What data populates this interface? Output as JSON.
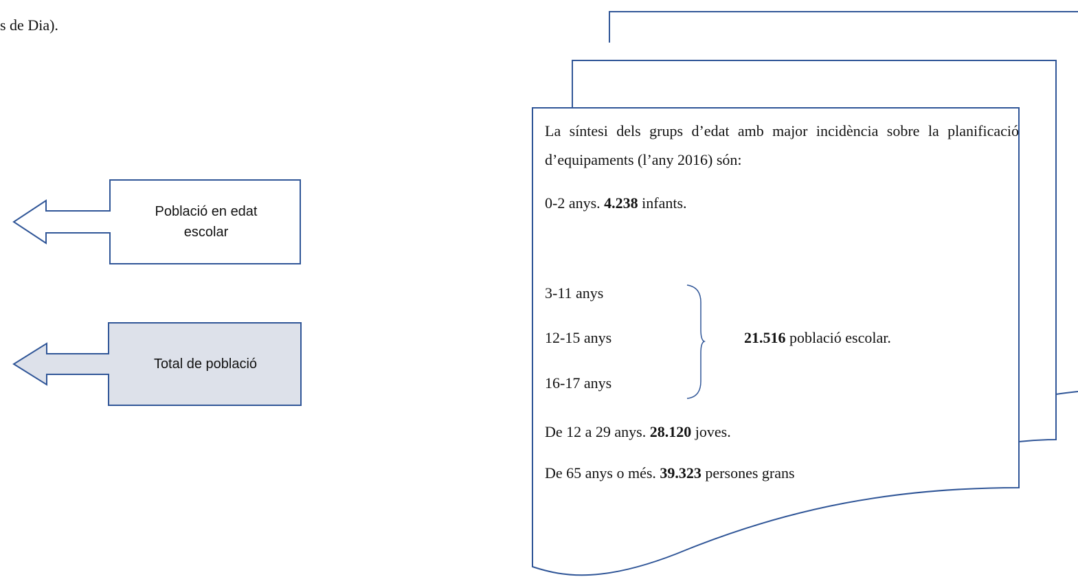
{
  "fragment": "s de Dia).",
  "callouts": [
    {
      "label": "Població en edat escolar"
    },
    {
      "label": "Total de població"
    }
  ],
  "document": {
    "intro": "La síntesi dels grups d’edat amb major incidència sobre la planificació d’equipaments (l’any 2016) són:",
    "first": {
      "before": "0-2 anys.",
      "figure": "4.238",
      "after": "infants."
    },
    "group": {
      "ages": [
        "3-11 anys",
        "12-15 anys",
        "16-17 anys"
      ],
      "figure": "21.516",
      "after": "població escolar."
    },
    "youth": {
      "before": "De 12 a 29 anys.",
      "figure": "28.120",
      "after": "joves."
    },
    "elderly": {
      "before": "De 65 anys o més.",
      "figure": "39.323",
      "after": "persones grans"
    }
  }
}
